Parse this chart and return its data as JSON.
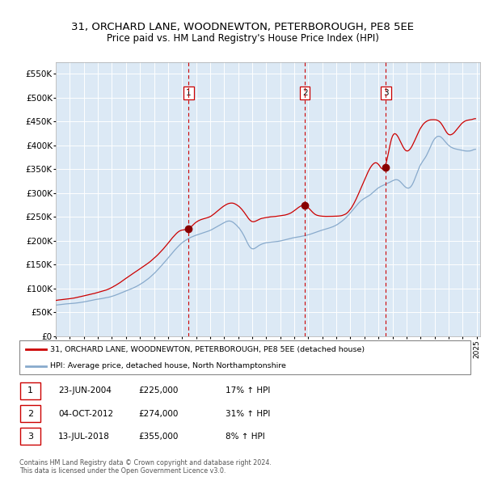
{
  "title": "31, ORCHARD LANE, WOODNEWTON, PETERBOROUGH, PE8 5EE",
  "subtitle": "Price paid vs. HM Land Registry's House Price Index (HPI)",
  "title_fontsize": 9.5,
  "subtitle_fontsize": 8.5,
  "background_color": "white",
  "plot_bg_color": "#dce9f5",
  "red_line_color": "#cc0000",
  "blue_line_color": "#88aacc",
  "red_dot_color": "#880000",
  "sale_dates": [
    "2004-06-23",
    "2012-10-04",
    "2018-07-13"
  ],
  "sale_prices": [
    225000,
    274000,
    355000
  ],
  "sale_labels": [
    "1",
    "2",
    "3"
  ],
  "legend_red": "31, ORCHARD LANE, WOODNEWTON, PETERBOROUGH, PE8 5EE (detached house)",
  "legend_blue": "HPI: Average price, detached house, North Northamptonshire",
  "table_rows": [
    [
      "1",
      "23-JUN-2004",
      "£225,000",
      "17% ↑ HPI"
    ],
    [
      "2",
      "04-OCT-2012",
      "£274,000",
      "31% ↑ HPI"
    ],
    [
      "3",
      "13-JUL-2018",
      "£355,000",
      "8% ↑ HPI"
    ]
  ],
  "footer": "Contains HM Land Registry data © Crown copyright and database right 2024.\nThis data is licensed under the Open Government Licence v3.0.",
  "ylim": [
    0,
    575000
  ],
  "yticks": [
    0,
    50000,
    100000,
    150000,
    200000,
    250000,
    300000,
    350000,
    400000,
    450000,
    500000,
    550000
  ],
  "start_year": 1995,
  "end_year": 2025
}
